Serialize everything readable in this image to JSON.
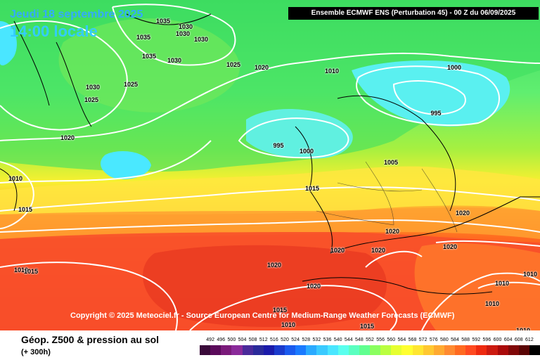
{
  "header": {
    "date": "Jeudi 18 septembre 2025",
    "time": "14:00 locale",
    "model": "Ensemble ECMWF ENS  (Perturbation 45)  -  00 Z du 06/09/2025"
  },
  "copyright": "Copyright © 2025 Meteociel.fr - Source European Centre for Medium-Range Weather Forecasts (ECMWF)",
  "footer": {
    "title": "Géop. Z500 & pression au sol",
    "subtitle": "(+ 300h)"
  },
  "isobar_labels": [
    "1035",
    "1030",
    "1035",
    "1030",
    "1030",
    "1035",
    "1030",
    "1025",
    "1020",
    "1010",
    "1000",
    "1030",
    "1025",
    "1025",
    "1020",
    "995",
    "995",
    "1000",
    "1005",
    "1010",
    "1015",
    "1015",
    "1020",
    "1020",
    "1020",
    "1020",
    "1020",
    "1010",
    "1015",
    "1020",
    "1020",
    "1015",
    "1010",
    "1015",
    "1010",
    "1010",
    "1010",
    "1010"
  ],
  "scale": {
    "values": [
      "492",
      "496",
      "500",
      "504",
      "508",
      "512",
      "516",
      "520",
      "524",
      "528",
      "532",
      "536",
      "540",
      "544",
      "548",
      "552",
      "556",
      "560",
      "564",
      "568",
      "572",
      "576",
      "580",
      "584",
      "588",
      "592",
      "596",
      "600",
      "604",
      "608",
      "612"
    ],
    "colors": [
      "#3a0a3a",
      "#5a0a5a",
      "#7a1a7a",
      "#8a2a9a",
      "#4a2a9a",
      "#2a2a9a",
      "#1a1aaa",
      "#1a3acc",
      "#1a5aee",
      "#1a7aff",
      "#2aaaff",
      "#3acaff",
      "#4ae6ff",
      "#5affee",
      "#5affc0",
      "#60ff90",
      "#8aff60",
      "#baff40",
      "#e6ff30",
      "#ffff30",
      "#ffe630",
      "#ffc830",
      "#ffaa30",
      "#ff8a30",
      "#ff6a20",
      "#ff4a20",
      "#ee2a10",
      "#cc1a10",
      "#aa0a0a",
      "#800808",
      "#5a0505",
      "#000000"
    ]
  }
}
